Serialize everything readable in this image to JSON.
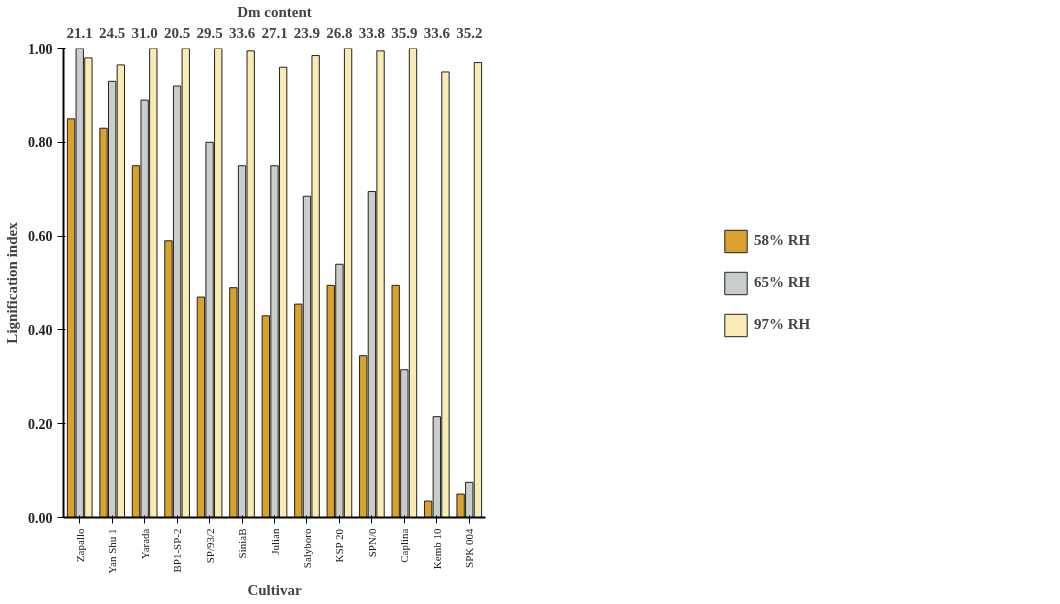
{
  "chart_data": {
    "type": "bar",
    "x2label": "Dm content",
    "xlabel": "Cultivar",
    "ylabel": "Lignification index",
    "categories": [
      "Zapallo",
      "Yan Shu 1",
      "Yarada",
      "BP1-SP-2",
      "SP/93/2",
      "SiniaB",
      "Julian",
      "Salyboro",
      "KSP 20",
      "SPN/0",
      "Caplina",
      "Kemb 10",
      "SPK 004"
    ],
    "series": [
      {
        "name": "58% RH",
        "color": "#d9a22c",
        "values": [
          0.85,
          0.83,
          0.75,
          0.59,
          0.47,
          0.49,
          0.43,
          0.455,
          0.495,
          0.345,
          0.495,
          0.035,
          0.05
        ]
      },
      {
        "name": "65% RH",
        "color": "#c9cdcb",
        "values": [
          1.0,
          0.93,
          0.89,
          0.92,
          0.8,
          0.75,
          0.75,
          0.685,
          0.54,
          0.695,
          0.315,
          0.215,
          0.075
        ]
      },
      {
        "name": "97% RH",
        "color": "#f8ebb3",
        "values": [
          0.98,
          0.965,
          1.0,
          1.0,
          1.0,
          0.995,
          0.96,
          0.985,
          1.0,
          0.995,
          1.0,
          0.95,
          0.97
        ]
      }
    ],
    "annotations": [
      "21.1",
      "24.5",
      "31.0",
      "20.5",
      "29.5",
      "33.6",
      "27.1",
      "23.9",
      "26.8",
      "33.8",
      "35.9",
      "33.6",
      "35.2"
    ],
    "ylim": [
      0,
      1.0
    ],
    "yticks": [
      {
        "value": 0,
        "label": "0.00"
      },
      {
        "value": 0.2,
        "label": "0.20"
      },
      {
        "value": 0.4,
        "label": "0.40"
      },
      {
        "value": 0.6,
        "label": "0.60"
      },
      {
        "value": 0.8,
        "label": "0.80"
      },
      {
        "value": 1.0,
        "label": "1.00"
      }
    ],
    "grid": false,
    "legend": "right"
  }
}
